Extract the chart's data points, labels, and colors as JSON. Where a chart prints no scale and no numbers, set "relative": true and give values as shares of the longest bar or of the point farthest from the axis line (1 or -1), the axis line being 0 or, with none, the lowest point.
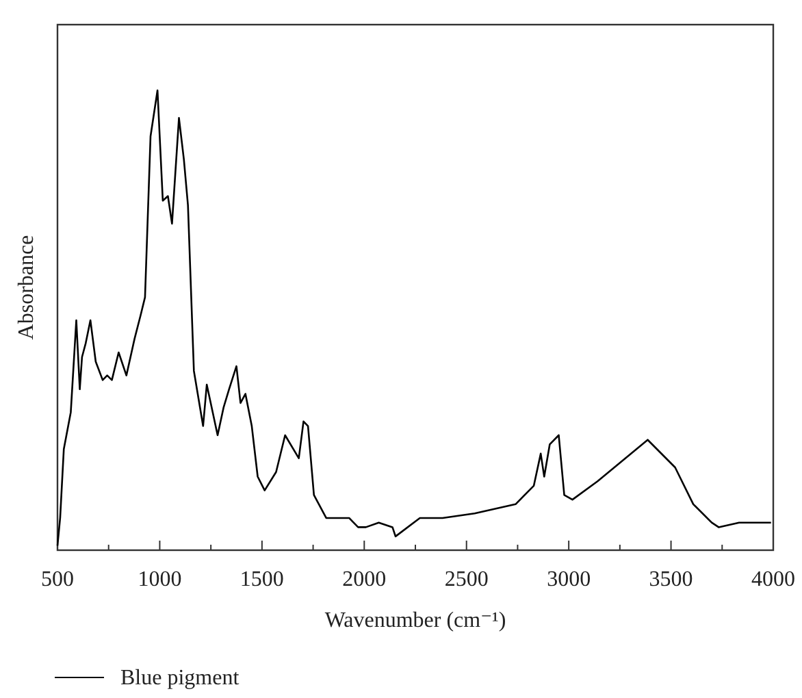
{
  "chart_data": {
    "type": "line",
    "xlabel": "Wavenumber (cm⁻¹)",
    "ylabel": "Absorbance",
    "relative": true,
    "xlim": [
      500,
      4000
    ],
    "xticks": [
      500,
      {
        "value": 750,
        "label": null
      },
      1000,
      {
        "value": 1250,
        "label": null
      },
      1500,
      {
        "value": 1750,
        "label": null
      },
      2000,
      {
        "value": 2250,
        "label": null
      },
      2500,
      {
        "value": 2750,
        "label": null
      },
      3000,
      {
        "value": 3250,
        "label": null
      },
      3500,
      {
        "value": 3750,
        "label": null
      },
      4000
    ],
    "legend": "bottom",
    "grid": false,
    "marker": "none",
    "line_style": "solid",
    "series": [
      {
        "name": "Blue pigment",
        "color": "#000000",
        "x": [
          500,
          513,
          531,
          565,
          592,
          609,
          620,
          638,
          661,
          687,
          721,
          743,
          766,
          799,
          837,
          877,
          906,
          928,
          955,
          989,
          1015,
          1040,
          1060,
          1094,
          1118,
          1138,
          1167,
          1212,
          1230,
          1283,
          1312,
          1339,
          1375,
          1395,
          1419,
          1450,
          1479,
          1513,
          1569,
          1613,
          1680,
          1703,
          1725,
          1754,
          1814,
          1926,
          1970,
          2008,
          2071,
          2138,
          2153,
          2272,
          2383,
          2540,
          2740,
          2829,
          2863,
          2880,
          2907,
          2951,
          2978,
          3018,
          3141,
          3386,
          3520,
          3609,
          3699,
          3733,
          3833,
          3911,
          3989
        ],
        "values": [
          0.01,
          0.07,
          0.22,
          0.3,
          0.5,
          0.35,
          0.42,
          0.45,
          0.5,
          0.41,
          0.37,
          0.38,
          0.37,
          0.43,
          0.38,
          0.46,
          0.51,
          0.55,
          0.9,
          1,
          0.76,
          0.77,
          0.71,
          0.94,
          0.85,
          0.75,
          0.39,
          0.27,
          0.36,
          0.25,
          0.31,
          0.35,
          0.4,
          0.32,
          0.34,
          0.27,
          0.16,
          0.13,
          0.17,
          0.25,
          0.2,
          0.28,
          0.27,
          0.12,
          0.07,
          0.07,
          0.05,
          0.05,
          0.06,
          0.05,
          0.03,
          0.07,
          0.07,
          0.08,
          0.1,
          0.14,
          0.21,
          0.16,
          0.23,
          0.25,
          0.12,
          0.11,
          0.15,
          0.24,
          0.18,
          0.1,
          0.06,
          0.05,
          0.06,
          0.06,
          0.06
        ]
      }
    ]
  }
}
